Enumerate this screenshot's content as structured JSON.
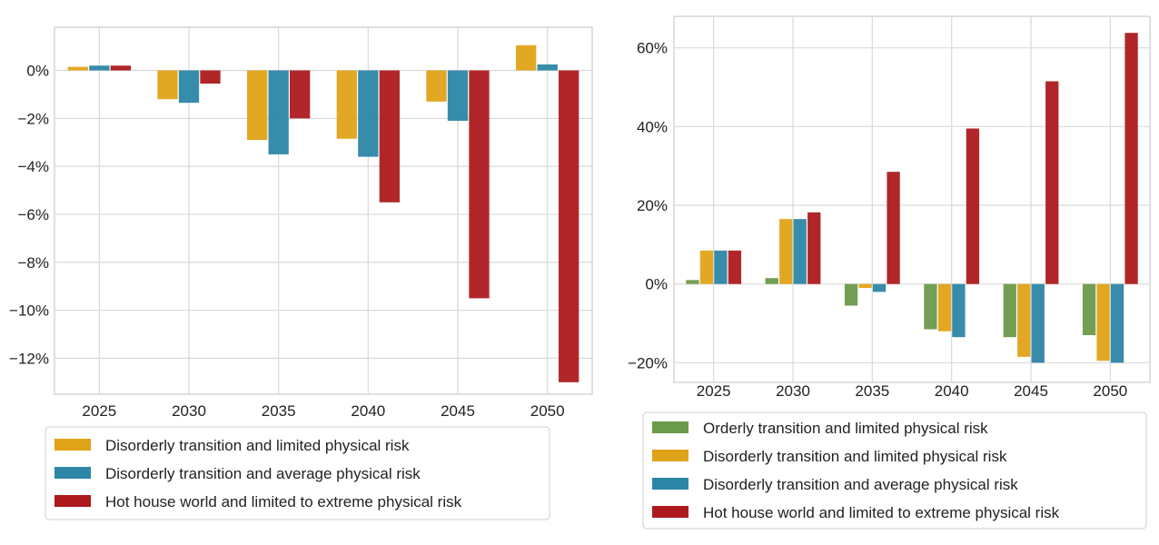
{
  "colors": {
    "orderly": "#6a9a4a",
    "disorderly_limited": "#e0a318",
    "disorderly_average": "#2c86a6",
    "hot_house": "#ad1a1d"
  },
  "chart_data": [
    {
      "type": "bar",
      "categories": [
        "2025",
        "2030",
        "2035",
        "2040",
        "2045",
        "2050"
      ],
      "ylim": [
        -13.5,
        1.8
      ],
      "yticks": [
        0,
        -2,
        -4,
        -6,
        -8,
        -10,
        -12
      ],
      "ytick_labels": [
        "0%",
        "−2%",
        "−4%",
        "−6%",
        "−8%",
        "−10%",
        "−12%"
      ],
      "legend_position": "below",
      "series": [
        {
          "name": "Disorderly transition and limited physical risk",
          "color_key": "disorderly_limited",
          "values": [
            0.15,
            -1.2,
            -2.9,
            -2.85,
            -1.3,
            1.05
          ]
        },
        {
          "name": "Disorderly transition and average physical risk",
          "color_key": "disorderly_average",
          "values": [
            0.2,
            -1.35,
            -3.5,
            -3.6,
            -2.1,
            0.25
          ]
        },
        {
          "name": "Hot house world and limited to extreme physical risk",
          "color_key": "hot_house",
          "values": [
            0.2,
            -0.55,
            -2.0,
            -5.5,
            -9.5,
            -13.0
          ]
        }
      ]
    },
    {
      "type": "bar",
      "categories": [
        "2025",
        "2030",
        "2035",
        "2040",
        "2045",
        "2050"
      ],
      "ylim": [
        -25,
        68
      ],
      "yticks": [
        60,
        40,
        20,
        0,
        -20
      ],
      "ytick_labels": [
        "60%",
        "40%",
        "20%",
        "0%",
        "−20%"
      ],
      "legend_position": "below",
      "series": [
        {
          "name": "Orderly transition and limited physical risk",
          "color_key": "orderly",
          "values": [
            1,
            1.5,
            -5.5,
            -11.5,
            -13.5,
            -13
          ]
        },
        {
          "name": "Disorderly transition and limited physical risk",
          "color_key": "disorderly_limited",
          "values": [
            8.5,
            16.5,
            -1.0,
            -12,
            -18.5,
            -19.5
          ]
        },
        {
          "name": "Disorderly transition and average physical risk",
          "color_key": "disorderly_average",
          "values": [
            8.5,
            16.5,
            -2.0,
            -13.5,
            -20,
            -20
          ]
        },
        {
          "name": "Hot house world and limited to extreme physical risk",
          "color_key": "hot_house",
          "values": [
            8.5,
            18.2,
            28.5,
            39.5,
            51.5,
            63.8
          ]
        }
      ]
    }
  ]
}
